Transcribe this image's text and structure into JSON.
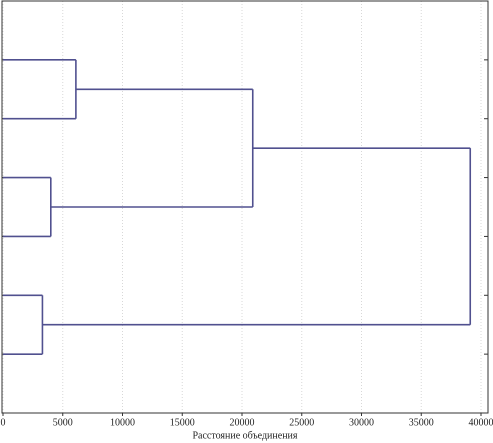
{
  "chart_data": {
    "type": "dendrogram",
    "xlabel": "Расстояние объединения",
    "xlim": [
      0,
      40000
    ],
    "xticks": [
      0,
      5000,
      10000,
      15000,
      20000,
      25000,
      30000,
      35000,
      40000
    ],
    "grid": true,
    "color": "#50508f",
    "tree": {
      "distance": 39100,
      "children": [
        {
          "distance": 20900,
          "children": [
            {
              "distance": 6100,
              "children": [
                {
                  "distance": 0
                },
                {
                  "distance": 0
                }
              ]
            },
            {
              "distance": 4000,
              "children": [
                {
                  "distance": 0
                },
                {
                  "distance": 0
                }
              ]
            }
          ]
        },
        {
          "distance": 3300,
          "children": [
            {
              "distance": 0
            },
            {
              "distance": 0
            }
          ]
        }
      ]
    }
  }
}
